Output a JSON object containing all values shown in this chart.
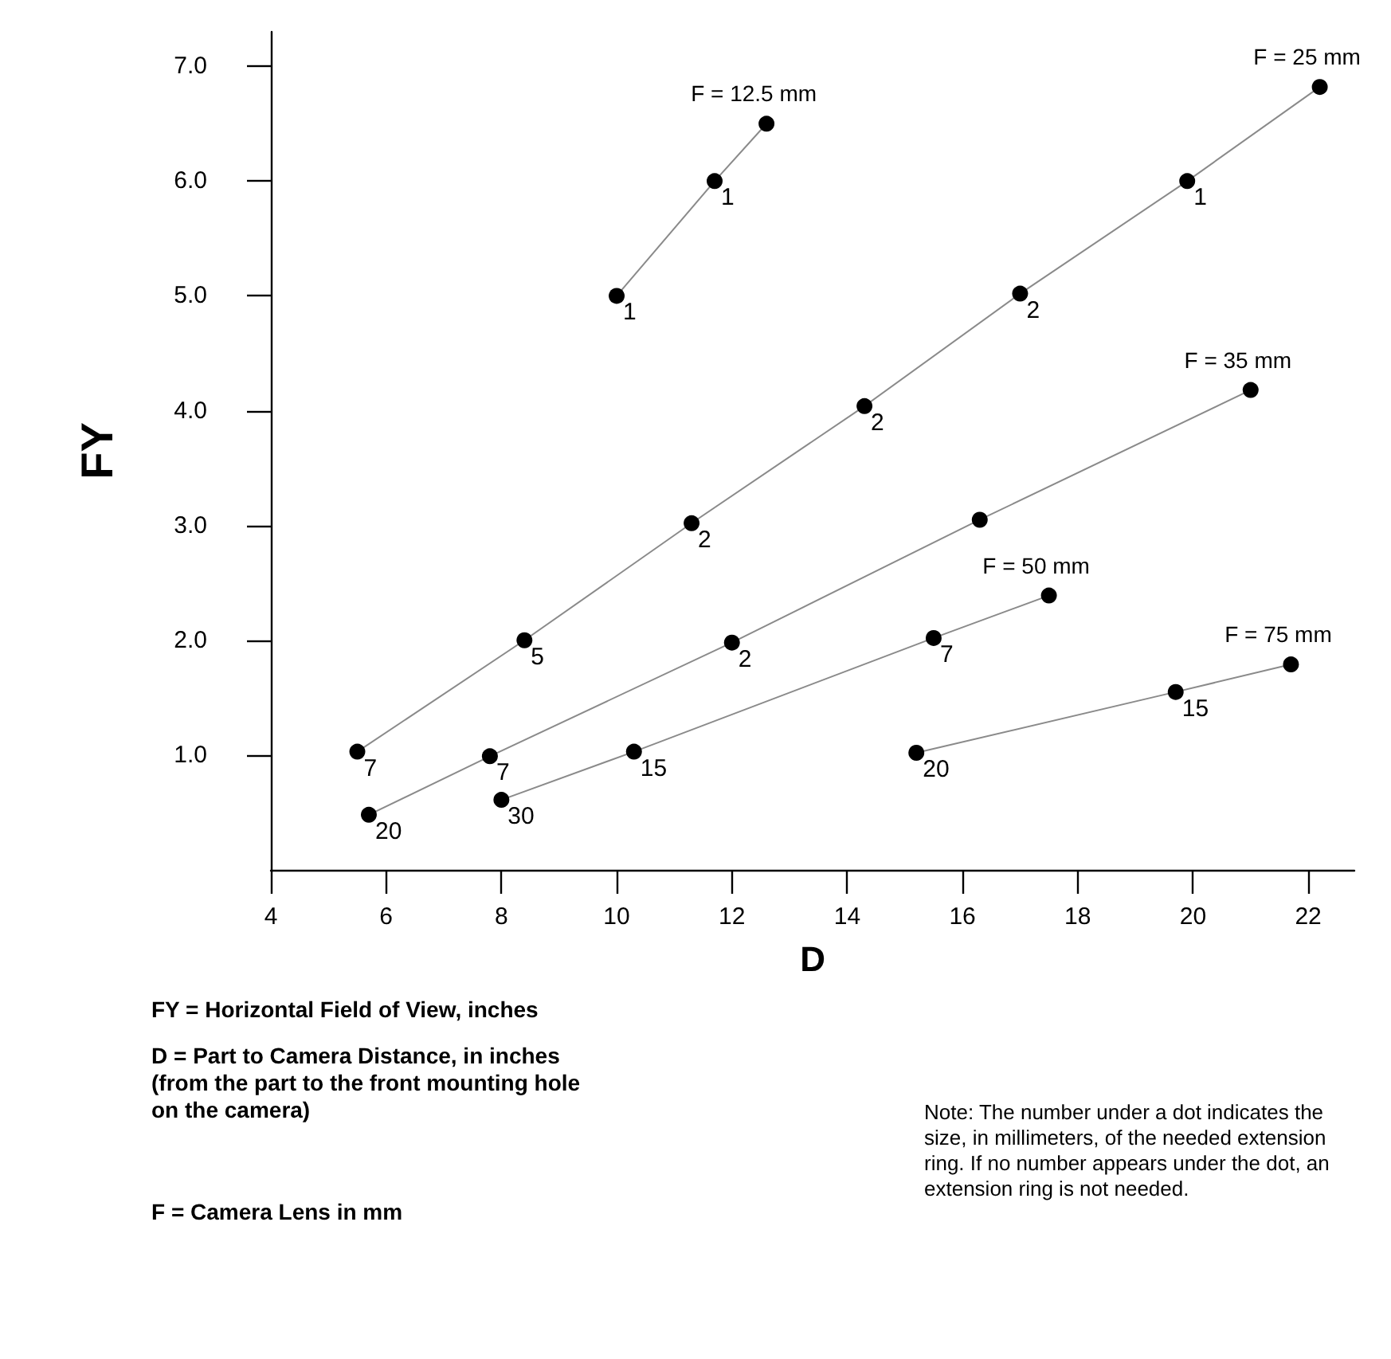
{
  "chart_data": {
    "type": "line",
    "xlabel": "D",
    "ylabel": "FY",
    "xlim": [
      4,
      22.8
    ],
    "ylim": [
      0,
      7.3
    ],
    "xticks": [
      4,
      6,
      8,
      10,
      12,
      14,
      16,
      18,
      20,
      22
    ],
    "yticks": [
      {
        "value": 1,
        "label": "1.0"
      },
      {
        "value": 2,
        "label": "2.0"
      },
      {
        "value": 3,
        "label": "3.0"
      },
      {
        "value": 4,
        "label": "4.0"
      },
      {
        "value": 5,
        "label": "5.0"
      },
      {
        "value": 6,
        "label": "6.0"
      },
      {
        "value": 7,
        "label": "7.0"
      }
    ],
    "grid": false,
    "legend": false,
    "marker": "circle",
    "line_style": "solid",
    "series": [
      {
        "name": "F = 12.5 mm",
        "color": "#000000",
        "x": [
          10.0,
          11.7,
          12.6
        ],
        "values": [
          5.0,
          6.0,
          6.5
        ]
      },
      {
        "name": "F = 25 mm",
        "color": "#000000",
        "x": [
          5.5,
          8.4,
          11.3,
          14.3,
          17.0,
          19.9,
          22.2
        ],
        "values": [
          1.03,
          2.0,
          3.02,
          4.04,
          5.02,
          6.0,
          6.82
        ]
      },
      {
        "name": "F = 35 mm",
        "color": "#000000",
        "x": [
          5.7,
          7.8,
          12.0,
          16.3,
          21.0
        ],
        "values": [
          0.48,
          0.99,
          1.98,
          3.05,
          4.18
        ]
      },
      {
        "name": "F = 50 mm",
        "color": "#000000",
        "x": [
          8.0,
          10.3,
          15.5,
          17.5
        ],
        "values": [
          0.61,
          1.03,
          2.02,
          2.39
        ]
      },
      {
        "name": "F = 75 mm",
        "color": "#000000",
        "x": [
          15.2,
          19.7,
          21.7
        ],
        "values": [
          1.02,
          1.55,
          1.79
        ]
      }
    ],
    "annotations": [
      "FY = Horizontal Field of View, inches",
      "D = Part to Camera Distance, in inches (from the part to the front mounting hole on the camera)",
      "F = Camera Lens in mm",
      "Note: The number under a dot indicates the size, in millimeters, of the needed extension ring. If no number appears under the dot, an extension ring is not needed.",
      {
        "text": "1",
        "x": 10.0,
        "y": 5.0
      },
      {
        "text": "1",
        "x": 11.7,
        "y": 6.0
      },
      {
        "text": "7",
        "x": 5.5,
        "y": 1.03
      },
      {
        "text": "5",
        "x": 8.4,
        "y": 2.0
      },
      {
        "text": "2",
        "x": 11.3,
        "y": 3.02
      },
      {
        "text": "2",
        "x": 14.3,
        "y": 4.04
      },
      {
        "text": "2",
        "x": 17.0,
        "y": 5.02
      },
      {
        "text": "1",
        "x": 19.9,
        "y": 6.0
      },
      {
        "text": "20",
        "x": 5.7,
        "y": 0.48
      },
      {
        "text": "7",
        "x": 7.8,
        "y": 0.99
      },
      {
        "text": "2",
        "x": 12.0,
        "y": 1.98
      },
      {
        "text": "30",
        "x": 8.0,
        "y": 0.61
      },
      {
        "text": "15",
        "x": 10.3,
        "y": 1.03
      },
      {
        "text": "7",
        "x": 15.5,
        "y": 2.02
      },
      {
        "text": "20",
        "x": 15.2,
        "y": 1.02
      },
      {
        "text": "15",
        "x": 19.7,
        "y": 1.55
      }
    ]
  }
}
